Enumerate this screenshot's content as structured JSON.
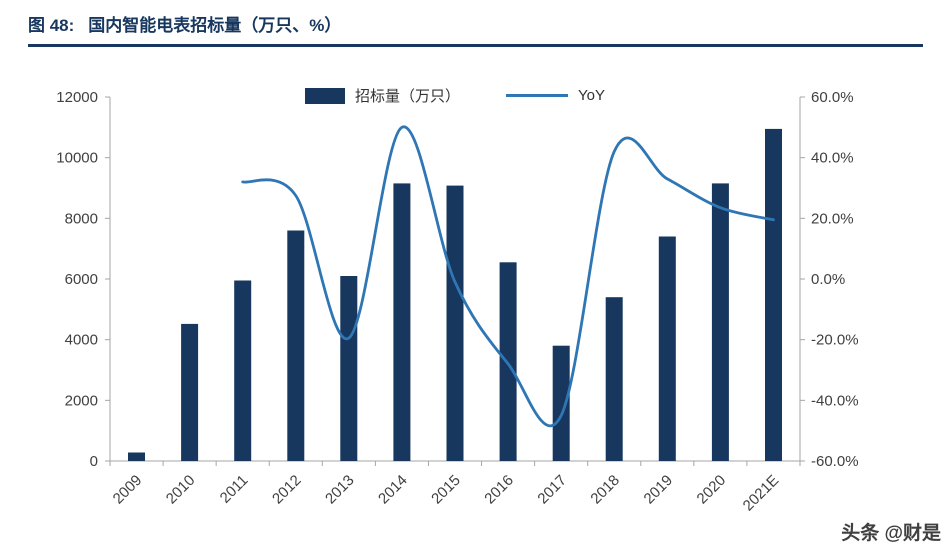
{
  "header": {
    "figure_label": "图 48:",
    "title": "国内智能电表招标量（万只、%）"
  },
  "watermark": {
    "text": "头条 @财是"
  },
  "colors": {
    "bar": "#17375E",
    "line": "#2F76B5",
    "title": "#17375E",
    "axis": "#A6A6A6",
    "axis_text": "#404040"
  },
  "chart_data": {
    "type": "bar",
    "subtype": "combo-bar-line",
    "title": "国内智能电表招标量（万只、%）",
    "categories": [
      "2009",
      "2010",
      "2011",
      "2012",
      "2013",
      "2014",
      "2015",
      "2016",
      "2017",
      "2018",
      "2019",
      "2020",
      "2021E"
    ],
    "series": [
      {
        "name": "招标量（万只）",
        "type": "bar",
        "axis": "left",
        "color": "#17375E",
        "values": [
          280,
          4520,
          5950,
          7600,
          6100,
          9150,
          9080,
          6550,
          3800,
          5400,
          7400,
          9150,
          10950
        ]
      },
      {
        "name": "YoY",
        "type": "line",
        "axis": "right",
        "color": "#2F76B5",
        "values": [
          null,
          null,
          32,
          27.5,
          -19.5,
          50,
          -1,
          -28,
          -45,
          42,
          33,
          23.5,
          19.5
        ]
      }
    ],
    "left_axis": {
      "min": 0,
      "max": 12000,
      "step": 2000,
      "tick_labels": [
        "0",
        "2000",
        "4000",
        "6000",
        "8000",
        "10000",
        "12000"
      ]
    },
    "right_axis": {
      "min": -60,
      "max": 60,
      "step": 20,
      "tick_labels": [
        "-60.0%",
        "-40.0%",
        "-20.0%",
        "0.0%",
        "20.0%",
        "40.0%",
        "60.0%"
      ]
    },
    "legend_position": "top-center",
    "grid": false
  }
}
